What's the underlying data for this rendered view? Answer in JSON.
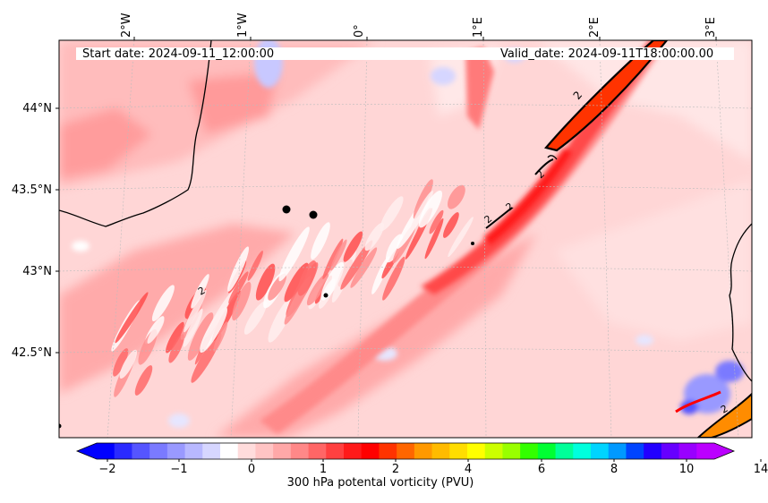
{
  "map": {
    "start_date": "Start date: 2024-09-11_12:00:00",
    "valid_date": "Valid_date: 2024-09-11T18:00:00.00",
    "lon_ticks": [
      "2°W",
      "1°W",
      "0°",
      "1°E",
      "2°E",
      "3°E"
    ],
    "lat_ticks": [
      "44°N",
      "43.5°N",
      "43°N",
      "42.5°N"
    ],
    "contour_label": "2",
    "colorbar": {
      "label": "300 hPa potental vorticity (PVU)",
      "ticks": [
        "−2",
        "−1",
        "0",
        "1",
        "2",
        "4",
        "6",
        "8",
        "10",
        "14"
      ],
      "colors": [
        "#0000ff",
        "#2a2aff",
        "#5555ff",
        "#7a7aff",
        "#9999ff",
        "#b8b8ff",
        "#d6d6ff",
        "#ffffff",
        "#ffdcdc",
        "#ffc4c4",
        "#ffa8a8",
        "#ff8888",
        "#ff6666",
        "#ff4040",
        "#ff1a1a",
        "#ff0000",
        "#ff3300",
        "#ff6600",
        "#ff9900",
        "#ffbb00",
        "#ffdd00",
        "#ffff00",
        "#ccff00",
        "#99ff00",
        "#33ff00",
        "#00ff33",
        "#00ff99",
        "#00ffdd",
        "#00d4ff",
        "#0099ff",
        "#0044ff",
        "#2200ff",
        "#6600ff",
        "#9900ff",
        "#bb00ff"
      ]
    }
  }
}
